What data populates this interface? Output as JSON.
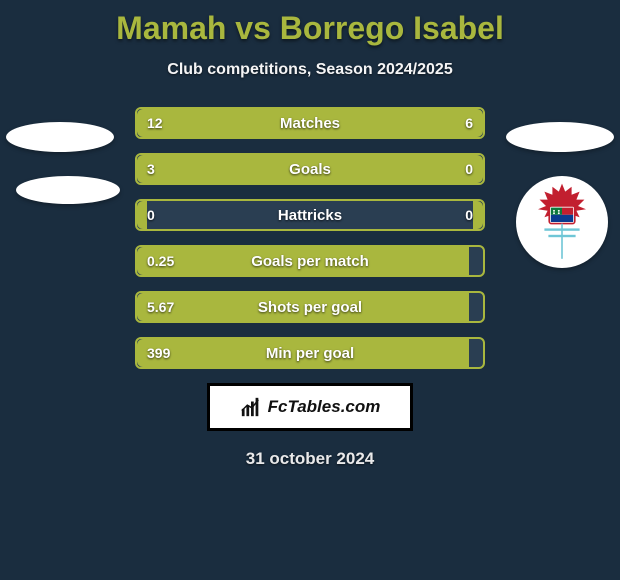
{
  "colors": {
    "background": "#1a2d3f",
    "title": "#a9b73e",
    "subtitle": "#f4f4f5",
    "bar_border": "#a9b73e",
    "bar_left": "#a9b73e",
    "bar_right": "#a9b73e",
    "bar_empty": "#2a3e52",
    "text_on_bar": "#ffffff",
    "date": "#e9e9ea",
    "crest_red": "#c21f2f",
    "crest_blue": "#0a3b8f",
    "crest_green": "#0e7a3c",
    "crest_cyan": "#6fc6d6"
  },
  "title_fontsize": 32,
  "subtitle_fontsize": 16,
  "bar_label_fontsize": 15,
  "bar_value_fontsize": 14,
  "date_fontsize": 17,
  "title": "Mamah vs Borrego Isabel",
  "subtitle": "Club competitions, Season 2024/2025",
  "date": "31 october 2024",
  "brand": "FcTables.com",
  "bars": [
    {
      "label": "Matches",
      "left": "12",
      "right": "6",
      "left_pct": 66.6,
      "right_pct": 33.4
    },
    {
      "label": "Goals",
      "left": "3",
      "right": "0",
      "left_pct": 75.0,
      "right_pct": 25.0
    },
    {
      "label": "Hattricks",
      "left": "0",
      "right": "0",
      "left_pct": 3.0,
      "right_pct": 3.0
    },
    {
      "label": "Goals per match",
      "left": "0.25",
      "right": "",
      "left_pct": 96.0,
      "right_pct": 0.0
    },
    {
      "label": "Shots per goal",
      "left": "5.67",
      "right": "",
      "left_pct": 96.0,
      "right_pct": 0.0
    },
    {
      "label": "Min per goal",
      "left": "399",
      "right": "",
      "left_pct": 96.0,
      "right_pct": 0.0
    }
  ]
}
